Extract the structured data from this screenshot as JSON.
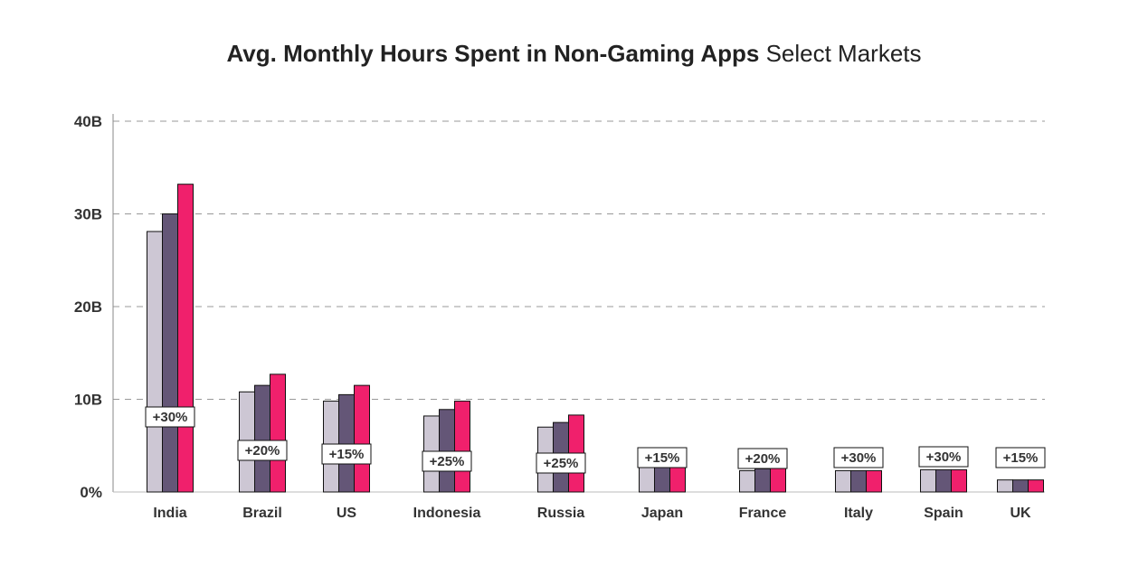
{
  "chart_data": {
    "type": "bar",
    "title": "Avg. Monthly Hours Spent in Non-Gaming Apps",
    "subtitle": "Select Markets",
    "xlabel": "",
    "ylabel": "",
    "ylim": [
      0,
      40
    ],
    "yticks": [
      0,
      10,
      20,
      30,
      40
    ],
    "ytick_labels": [
      "0%",
      "10B",
      "20B",
      "30B",
      "40B"
    ],
    "grid": true,
    "categories": [
      "India",
      "Brazil",
      "US",
      "Indonesia",
      "Russia",
      "Japan",
      "France",
      "Italy",
      "Spain",
      "UK"
    ],
    "series": [
      {
        "values": [
          28.1,
          10.8,
          9.8,
          8.2,
          7.0,
          2.9,
          2.3,
          2.3,
          2.4,
          1.3
        ],
        "color": "#cdc7d4"
      },
      {
        "values": [
          30.0,
          11.5,
          10.5,
          8.9,
          7.5,
          2.9,
          2.5,
          2.3,
          2.4,
          1.3
        ],
        "color": "#645677"
      },
      {
        "values": [
          33.2,
          12.7,
          11.5,
          9.8,
          8.3,
          2.9,
          2.6,
          2.3,
          2.4,
          1.3
        ],
        "color": "#f0206c"
      }
    ],
    "annotations": [
      "+30%",
      "+20%",
      "+15%",
      "+25%",
      "+25%",
      "+15%",
      "+20%",
      "+30%",
      "+30%",
      "+15%"
    ]
  }
}
